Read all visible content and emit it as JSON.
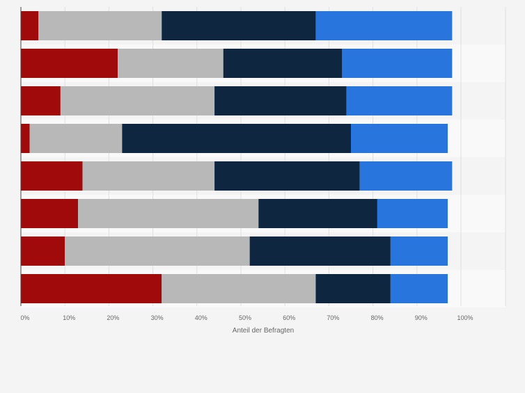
{
  "chart_data": {
    "type": "bar",
    "orientation": "horizontal",
    "stacked": true,
    "categories": [
      "",
      "",
      "",
      "",
      "",
      "",
      "",
      ""
    ],
    "series": [
      {
        "color": "#a10a0a",
        "values": [
          4,
          22,
          9,
          2,
          14,
          13,
          10,
          32
        ]
      },
      {
        "color": "#b8b8b8",
        "values": [
          28,
          24,
          35,
          21,
          30,
          41,
          42,
          35
        ]
      },
      {
        "color": "#0f2640",
        "values": [
          35,
          27,
          30,
          52,
          33,
          27,
          32,
          17
        ]
      },
      {
        "color": "#2876dd",
        "values": [
          31,
          25,
          24,
          22,
          21,
          16,
          13,
          13
        ]
      }
    ],
    "xlabel": "Anteil der Befragten",
    "xlim": [
      0,
      110
    ],
    "x_ticks": [
      0,
      10,
      20,
      30,
      40,
      50,
      60,
      70,
      80,
      90,
      100
    ],
    "x_tick_labels": [
      "0%",
      "10%",
      "20%",
      "30%",
      "40%",
      "50%",
      "60%",
      "70%",
      "80%",
      "90%",
      "100%"
    ],
    "grid": true,
    "legend": "none"
  },
  "colors": {
    "background": "#f4f4f4",
    "band_alt": "#f9f9f9",
    "gridline": "#e0e0e0",
    "axis": "#444444",
    "tick_text": "#666666"
  }
}
